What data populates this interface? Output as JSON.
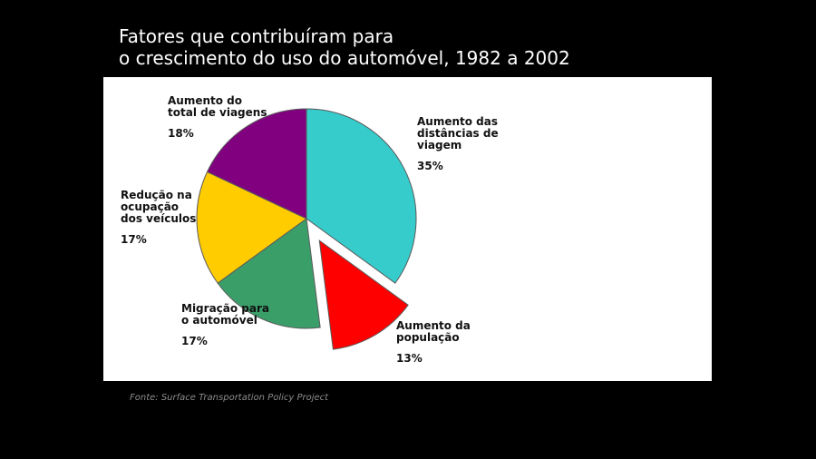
{
  "title_line1": "Fatores que contribuíram para",
  "title_line2": "o crescimento do uso do automóvel, 1982 a 2002",
  "source": "Fonte: Surface Transportation Policy Project",
  "chart_data": {
    "type": "pie",
    "title": "Fatores que contribuíram para o crescimento do uso do automóvel, 1982 a 2002",
    "unit": "%",
    "slices": [
      {
        "label": "Aumento das\ndistâncias de\nviagem",
        "value": 35,
        "value_label": "35%",
        "color": "#36CCCC",
        "exploded": false
      },
      {
        "label": "Aumento da\npopulação",
        "value": 13,
        "value_label": "13%",
        "color": "#FF0000",
        "exploded": true
      },
      {
        "label": "Migração para\no automóvel",
        "value": 17,
        "value_label": "17%",
        "color": "#3A9E69",
        "exploded": false
      },
      {
        "label": "Redução na\nocupação\ndos veículos",
        "value": 17,
        "value_label": "17%",
        "color": "#FFCC00",
        "exploded": false
      },
      {
        "label": "Aumento do\ntotal de viagens",
        "value": 18,
        "value_label": "18%",
        "color": "#800080",
        "exploded": false
      }
    ]
  }
}
